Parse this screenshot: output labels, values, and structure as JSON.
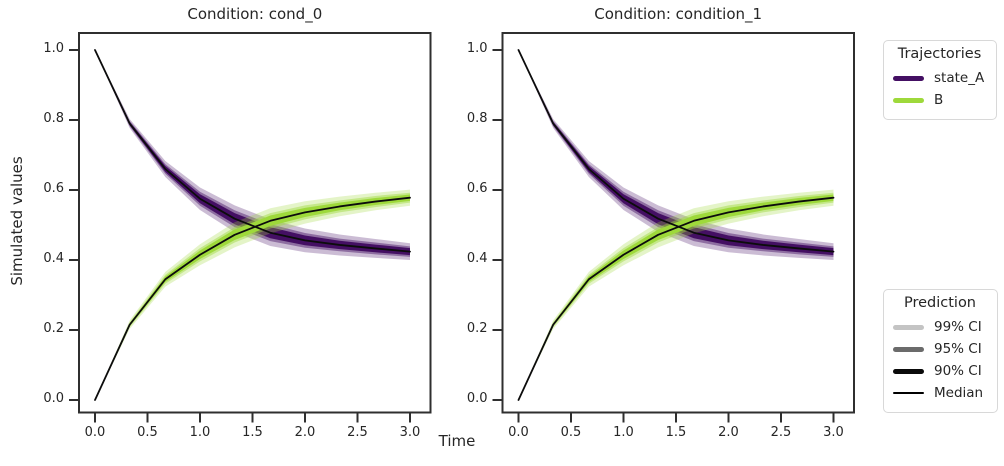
{
  "chart_data": {
    "type": "line",
    "xlabel": "Time",
    "ylabel": "Simulated values",
    "xticks": [
      "0.0",
      "0.5",
      "1.0",
      "1.5",
      "2.0",
      "2.5",
      "3.0"
    ],
    "yticks": [
      "0.0",
      "0.2",
      "0.4",
      "0.6",
      "0.8",
      "1.0"
    ],
    "xlim": [
      -0.15,
      3.2
    ],
    "ylim": [
      -0.05,
      1.05
    ],
    "grid": false,
    "x": [
      0,
      0.33,
      0.67,
      1.0,
      1.33,
      1.67,
      2.0,
      2.33,
      2.67,
      3.0
    ],
    "panels": [
      {
        "title": "Condition: cond_0",
        "series": [
          {
            "name": "state_A",
            "color": "#440f63",
            "median": [
              1.0,
              0.79,
              0.66,
              0.575,
              0.518,
              0.478,
              0.456,
              0.443,
              0.433,
              0.424
            ],
            "ci99": [
              0,
              0.013,
              0.023,
              0.032,
              0.038,
              0.038,
              0.034,
              0.03,
              0.027,
              0.024
            ],
            "ci95": [
              0,
              0.008,
              0.014,
              0.02,
              0.024,
              0.024,
              0.021,
              0.018,
              0.017,
              0.015
            ],
            "ci90": [
              0,
              0.005,
              0.009,
              0.013,
              0.016,
              0.016,
              0.014,
              0.012,
              0.011,
              0.01
            ]
          },
          {
            "name": "B",
            "color": "#9ed93b",
            "median": [
              0.0,
              0.215,
              0.345,
              0.415,
              0.472,
              0.512,
              0.536,
              0.553,
              0.567,
              0.578
            ],
            "ci99": [
              0,
              0.012,
              0.021,
              0.03,
              0.036,
              0.036,
              0.032,
              0.028,
              0.025,
              0.023
            ],
            "ci95": [
              0,
              0.007,
              0.013,
              0.019,
              0.022,
              0.022,
              0.02,
              0.017,
              0.016,
              0.014
            ],
            "ci90": [
              0,
              0.004,
              0.008,
              0.012,
              0.015,
              0.015,
              0.013,
              0.011,
              0.01,
              0.009
            ]
          }
        ]
      },
      {
        "title": "Condition: condition_1",
        "series": [
          {
            "name": "state_A",
            "color": "#440f63",
            "median": [
              1.0,
              0.79,
              0.66,
              0.575,
              0.518,
              0.478,
              0.456,
              0.443,
              0.433,
              0.424
            ],
            "ci99": [
              0,
              0.013,
              0.023,
              0.032,
              0.038,
              0.038,
              0.034,
              0.03,
              0.027,
              0.024
            ],
            "ci95": [
              0,
              0.008,
              0.014,
              0.02,
              0.024,
              0.024,
              0.021,
              0.018,
              0.017,
              0.015
            ],
            "ci90": [
              0,
              0.005,
              0.009,
              0.013,
              0.016,
              0.016,
              0.014,
              0.012,
              0.011,
              0.01
            ]
          },
          {
            "name": "B",
            "color": "#9ed93b",
            "median": [
              0.0,
              0.215,
              0.345,
              0.415,
              0.472,
              0.512,
              0.536,
              0.553,
              0.567,
              0.578
            ],
            "ci99": [
              0,
              0.012,
              0.021,
              0.03,
              0.036,
              0.036,
              0.032,
              0.028,
              0.025,
              0.023
            ],
            "ci95": [
              0,
              0.007,
              0.013,
              0.019,
              0.022,
              0.022,
              0.02,
              0.017,
              0.016,
              0.014
            ],
            "ci90": [
              0,
              0.004,
              0.008,
              0.012,
              0.015,
              0.015,
              0.013,
              0.011,
              0.01,
              0.009
            ]
          }
        ]
      }
    ],
    "band_alphas": {
      "ci99": 0.28,
      "ci95": 0.45,
      "ci90": 1.0
    },
    "median_color": "#0c0c0c",
    "legends": [
      {
        "title": "Trajectories",
        "position": "upper-right-outside",
        "items": [
          {
            "label": "state_A",
            "color": "#440f63",
            "type": "thick-line"
          },
          {
            "label": "B",
            "color": "#9ed93b",
            "type": "thick-line"
          }
        ]
      },
      {
        "title": "Prediction",
        "position": "lower-right-outside",
        "items": [
          {
            "label": "99% CI",
            "color": "#c4c4c4",
            "type": "thick-line"
          },
          {
            "label": "95% CI",
            "color": "#6b6b6b",
            "type": "thick-line"
          },
          {
            "label": "90% CI",
            "color": "#0a0a0a",
            "type": "thick-line"
          },
          {
            "label": "Median",
            "color": "#000000",
            "type": "thin-line"
          }
        ]
      }
    ]
  }
}
